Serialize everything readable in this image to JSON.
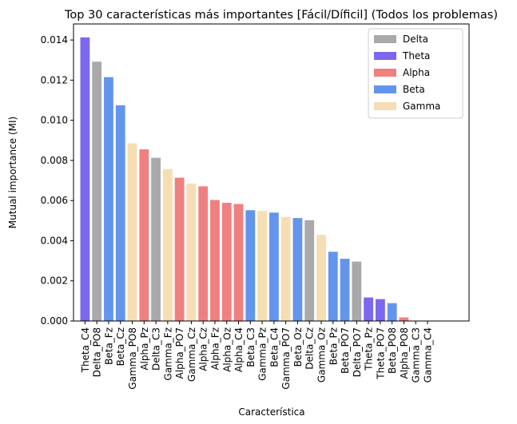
{
  "chart_data": {
    "type": "bar",
    "title": "Top 30 características más importantes [Fácil/Díficil] (Todos los problemas)",
    "xlabel": "Característica",
    "ylabel": "Mutual importance (MI)",
    "ylim": [
      0,
      0.0148
    ],
    "yticks": [
      "0.000",
      "0.002",
      "0.004",
      "0.006",
      "0.008",
      "0.010",
      "0.012",
      "0.014"
    ],
    "grid": false,
    "legend_position": "top-right",
    "colors": {
      "Delta": "#a9a9a9",
      "Theta": "#7b68ee",
      "Alpha": "#f08080",
      "Beta": "#6495ed",
      "Gamma": "#f5deb3"
    },
    "legend": [
      "Delta",
      "Theta",
      "Alpha",
      "Beta",
      "Gamma"
    ],
    "categories": [
      "Theta_C4",
      "Delta_PO8",
      "Beta_Fz",
      "Beta_Cz",
      "Gamma_PO8",
      "Alpha_Pz",
      "Delta_C3",
      "Gamma_Fz",
      "Alpha_PO7",
      "Gamma_Cz",
      "Alpha_Cz",
      "Alpha_Fz",
      "Alpha_Oz",
      "Alpha_C4",
      "Beta_C3",
      "Gamma_Pz",
      "Beta_C4",
      "Gamma_PO7",
      "Beta_Oz",
      "Delta_Cz",
      "Gamma_Oz",
      "Beta_Pz",
      "Beta_PO7",
      "Delta_PO7",
      "Theta_Pz",
      "Theta_PO7",
      "Beta_PO8",
      "Alpha_PO8",
      "Gamma_C3",
      "Gamma_C4"
    ],
    "bands": [
      "Theta",
      "Delta",
      "Beta",
      "Beta",
      "Gamma",
      "Alpha",
      "Delta",
      "Gamma",
      "Alpha",
      "Gamma",
      "Alpha",
      "Alpha",
      "Alpha",
      "Alpha",
      "Beta",
      "Gamma",
      "Beta",
      "Gamma",
      "Beta",
      "Delta",
      "Gamma",
      "Beta",
      "Beta",
      "Delta",
      "Theta",
      "Theta",
      "Beta",
      "Alpha",
      "Gamma",
      "Gamma"
    ],
    "values": [
      0.01413,
      0.01292,
      0.01215,
      0.01075,
      0.00885,
      0.00855,
      0.00813,
      0.00757,
      0.00714,
      0.00685,
      0.00671,
      0.00603,
      0.00589,
      0.00583,
      0.00552,
      0.00548,
      0.0054,
      0.00518,
      0.00513,
      0.00502,
      0.00429,
      0.00345,
      0.0031,
      0.00296,
      0.00117,
      0.00109,
      0.00089,
      0.00018,
      1e-05,
      0.0
    ]
  }
}
